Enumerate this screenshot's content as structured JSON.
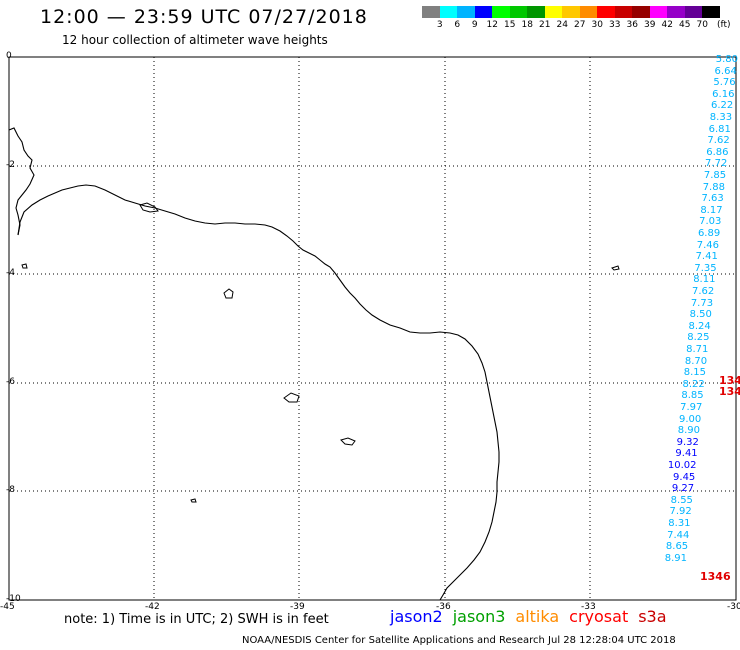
{
  "header": {
    "title": "12:00 — 23:59 UTC 07/27/2018",
    "subtitle": "12 hour collection of altimeter wave heights"
  },
  "colorbar": {
    "colors": [
      "#808080",
      "#00ffff",
      "#00b4ff",
      "#0000ff",
      "#00ff00",
      "#00c800",
      "#009600",
      "#ffff00",
      "#ffc800",
      "#ff8c00",
      "#ff0000",
      "#c80000",
      "#960000",
      "#ff00ff",
      "#9600c8",
      "#640096",
      "#000000"
    ],
    "labels": [
      "3",
      "6",
      "9",
      "12",
      "15",
      "18",
      "21",
      "24",
      "27",
      "30",
      "33",
      "36",
      "39",
      "42",
      "45",
      "70"
    ],
    "unit": "(ft)"
  },
  "axes": {
    "x_ticks": [
      "-45",
      "-42",
      "-39",
      "-36",
      "-33",
      "-30"
    ],
    "y_ticks": [
      "0",
      "-2",
      "-4",
      "-6",
      "-8",
      "-10"
    ]
  },
  "wave_heights": [
    {
      "v": "5.80",
      "c": "#00b4ff"
    },
    {
      "v": "6.64",
      "c": "#00b4ff"
    },
    {
      "v": "5.76",
      "c": "#00b4ff"
    },
    {
      "v": "6.16",
      "c": "#00b4ff"
    },
    {
      "v": "6.22",
      "c": "#00b4ff"
    },
    {
      "v": "8.33",
      "c": "#00b4ff"
    },
    {
      "v": "6.81",
      "c": "#00b4ff"
    },
    {
      "v": "7.62",
      "c": "#00b4ff"
    },
    {
      "v": "6.86",
      "c": "#00b4ff"
    },
    {
      "v": "7.72",
      "c": "#00b4ff"
    },
    {
      "v": "7.85",
      "c": "#00b4ff"
    },
    {
      "v": "7.88",
      "c": "#00b4ff"
    },
    {
      "v": "7.63",
      "c": "#00b4ff"
    },
    {
      "v": "8.17",
      "c": "#00b4ff"
    },
    {
      "v": "7.03",
      "c": "#00b4ff"
    },
    {
      "v": "6.89",
      "c": "#00b4ff"
    },
    {
      "v": "7.46",
      "c": "#00b4ff"
    },
    {
      "v": "7.41",
      "c": "#00b4ff"
    },
    {
      "v": "7.35",
      "c": "#00b4ff"
    },
    {
      "v": "8.11",
      "c": "#00b4ff"
    },
    {
      "v": "7.62",
      "c": "#00b4ff"
    },
    {
      "v": "7.73",
      "c": "#00b4ff"
    },
    {
      "v": "8.50",
      "c": "#00b4ff"
    },
    {
      "v": "8.24",
      "c": "#00b4ff"
    },
    {
      "v": "8.25",
      "c": "#00b4ff"
    },
    {
      "v": "8.71",
      "c": "#00b4ff"
    },
    {
      "v": "8.70",
      "c": "#00b4ff"
    },
    {
      "v": "8.15",
      "c": "#00b4ff"
    },
    {
      "v": "8.22",
      "c": "#00b4ff"
    },
    {
      "v": "8.85",
      "c": "#00b4ff"
    },
    {
      "v": "7.97",
      "c": "#00b4ff"
    },
    {
      "v": "9.00",
      "c": "#00b4ff"
    },
    {
      "v": "8.90",
      "c": "#00b4ff"
    },
    {
      "v": "9.32",
      "c": "#0000ff"
    },
    {
      "v": "9.41",
      "c": "#0000ff"
    },
    {
      "v": "10.02",
      "c": "#0000ff"
    },
    {
      "v": "9.45",
      "c": "#0000ff"
    },
    {
      "v": "9.27",
      "c": "#0000ff"
    },
    {
      "v": "8.55",
      "c": "#00b4ff"
    },
    {
      "v": "7.92",
      "c": "#00b4ff"
    },
    {
      "v": "8.31",
      "c": "#00b4ff"
    },
    {
      "v": "7.44",
      "c": "#00b4ff"
    },
    {
      "v": "8.65",
      "c": "#00b4ff"
    },
    {
      "v": "8.91",
      "c": "#00b4ff"
    }
  ],
  "cycle_ids": [
    "134",
    "134",
    "1346"
  ],
  "note": "note: 1) Time is in UTC; 2) SWH is in feet",
  "legend": [
    {
      "name": "jason2",
      "color": "#0000ff"
    },
    {
      "name": "jason3",
      "color": "#00a000"
    },
    {
      "name": "altika",
      "color": "#ff8c00"
    },
    {
      "name": "cryosat",
      "color": "#ff0000"
    },
    {
      "name": "s3a",
      "color": "#c80000"
    }
  ],
  "footer": "NOAA/NESDIS Center for Satellite Applications and Research    Jul 28 12:28:04 UTC 2018"
}
